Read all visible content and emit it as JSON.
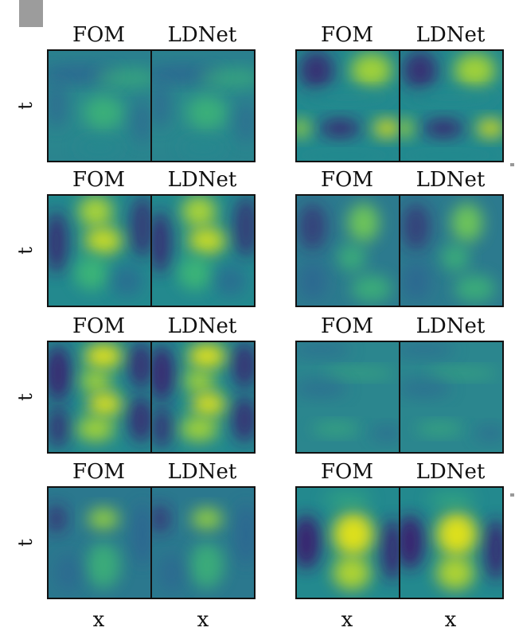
{
  "chart_data": {
    "type": "heatmap",
    "columns": [
      "FOM",
      "LDNet"
    ],
    "xlabel": "x",
    "ylabel": "t",
    "colormap": "viridis",
    "grid": false,
    "panels": [
      {
        "row": 0,
        "col": 0,
        "pattern": "wave-crossing-low-contrast",
        "fom_label": "FOM",
        "ldnet_label": "LDNet"
      },
      {
        "row": 0,
        "col": 1,
        "pattern": "bright-upper-and-lower-bands",
        "fom_label": "FOM",
        "ldnet_label": "LDNet"
      },
      {
        "row": 1,
        "col": 0,
        "pattern": "zigzag-bright-column",
        "fom_label": "FOM",
        "ldnet_label": "LDNet"
      },
      {
        "row": 1,
        "col": 1,
        "pattern": "curved-green-band",
        "fom_label": "FOM",
        "ldnet_label": "LDNet"
      },
      {
        "row": 2,
        "col": 0,
        "pattern": "strong-zigzag-yellow",
        "fom_label": "FOM",
        "ldnet_label": "LDNet"
      },
      {
        "row": 2,
        "col": 1,
        "pattern": "diagonal-streaks-low-contrast",
        "fom_label": "FOM",
        "ldnet_label": "LDNet"
      },
      {
        "row": 3,
        "col": 0,
        "pattern": "vertical-green-column",
        "fom_label": "FOM",
        "ldnet_label": "LDNet"
      },
      {
        "row": 3,
        "col": 1,
        "pattern": "wide-yellow-column-dark-edges",
        "fom_label": "FOM",
        "ldnet_label": "LDNet"
      }
    ]
  },
  "colors": {
    "dark": "#3b1a6e",
    "blue": "#2f5f93",
    "teal": "#23898e",
    "green": "#3fbc73",
    "yellow": "#e7e419",
    "border": "#111111"
  }
}
